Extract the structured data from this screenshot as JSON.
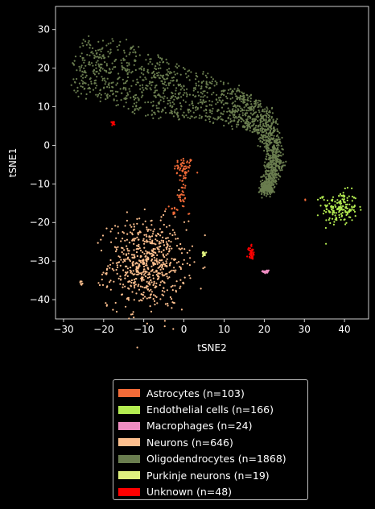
{
  "chart_data": {
    "type": "scatter",
    "xlabel": "tSNE2",
    "ylabel": "tSNE1",
    "xlim": [
      -32,
      46
    ],
    "ylim": [
      -45,
      36
    ],
    "xticks": [
      -30,
      -20,
      -10,
      0,
      10,
      20,
      30,
      40
    ],
    "yticks": [
      -40,
      -30,
      -20,
      -10,
      0,
      10,
      20,
      30
    ],
    "legend_position": "below",
    "series": [
      {
        "name": "Astrocytes (n=103)",
        "color": "#f36b38",
        "n": 103,
        "clusters": [
          {
            "center": [
              0,
              -6
            ],
            "spread": [
              1.2,
              1.5
            ],
            "n": 55
          },
          {
            "center": [
              -0.5,
              -12
            ],
            "spread": [
              0.6,
              2.2
            ],
            "n": 30
          },
          {
            "center": [
              -2.5,
              -17
            ],
            "spread": [
              0.5,
              1.0
            ],
            "n": 14
          },
          {
            "center": [
              30.2,
              -14
            ],
            "spread": [
              0.1,
              0.2
            ],
            "n": 2
          },
          {
            "center": [
              1.2,
              -18
            ],
            "spread": [
              0.2,
              0.3
            ],
            "n": 2
          }
        ]
      },
      {
        "name": "Endothelial cells (n=166)",
        "color": "#b4ec51",
        "n": 166,
        "clusters": [
          {
            "center": [
              38.8,
              -16.3
            ],
            "spread": [
              2.2,
              2.2
            ],
            "n": 163
          },
          {
            "center": [
              34.5,
              -13.5
            ],
            "spread": [
              0.3,
              0.3
            ],
            "n": 3
          }
        ]
      },
      {
        "name": "Macrophages (n=24)",
        "color": "#ef8dc2",
        "n": 24,
        "clusters": [
          {
            "center": [
              20.5,
              -32.7
            ],
            "spread": [
              0.4,
              0.3
            ],
            "n": 24
          }
        ]
      },
      {
        "name": "Neurons (n=646)",
        "color": "#fdbf8e",
        "n": 646,
        "clusters": [
          {
            "center": [
              -9.2,
              -30.8
            ],
            "spread": [
              4.8,
              5.6
            ],
            "n": 636
          },
          {
            "center": [
              -25.8,
              -35.7
            ],
            "spread": [
              0.4,
              0.3
            ],
            "n": 7
          },
          {
            "center": [
              -19.5,
              -40.7
            ],
            "spread": [
              0.1,
              0.1
            ],
            "n": 1
          },
          {
            "center": [
              -2.5,
              -40.8
            ],
            "spread": [
              0.2,
              0.1
            ],
            "n": 2
          }
        ]
      },
      {
        "name": "Oligodendrocytes (n=1868)",
        "color": "#6a7d4f",
        "n": 1868,
        "clusters": [
          {
            "path": [
              [
                -27,
                21
              ],
              [
                -18,
                19
              ],
              [
                -8,
                15
              ],
              [
                2,
                13
              ],
              [
                12,
                10
              ],
              [
                18,
                8
              ],
              [
                21.5,
                3
              ],
              [
                22.5,
                -4
              ],
              [
                21.5,
                -10
              ],
              [
                20,
                -12
              ]
            ],
            "width": [
              7,
              8,
              8,
              6,
              5,
              4,
              2.2,
              1.6,
              1.4,
              1.0
            ],
            "n": 1868
          }
        ]
      },
      {
        "name": "Purkinje neurons (n=19)",
        "color": "#dff07e",
        "n": 19,
        "clusters": [
          {
            "center": [
              5,
              -28.2
            ],
            "spread": [
              0.3,
              0.3
            ],
            "n": 19
          }
        ]
      },
      {
        "name": "Unknown (n=48)",
        "color": "#ff0000",
        "n": 48,
        "clusters": [
          {
            "center": [
              16.8,
              -27.7
            ],
            "spread": [
              0.4,
              0.9
            ],
            "n": 38
          },
          {
            "center": [
              -17.5,
              5.8
            ],
            "spread": [
              0.3,
              0.3
            ],
            "n": 10
          }
        ]
      }
    ]
  }
}
